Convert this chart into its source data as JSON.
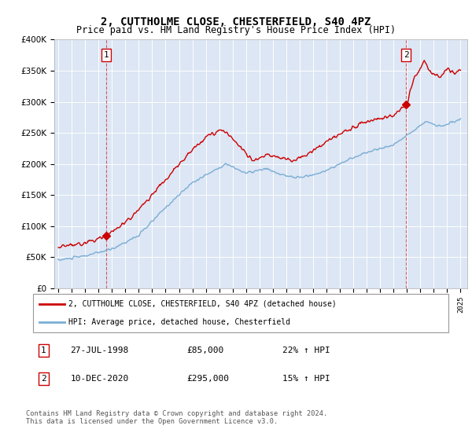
{
  "title": "2, CUTTHOLME CLOSE, CHESTERFIELD, S40 4PZ",
  "subtitle": "Price paid vs. HM Land Registry's House Price Index (HPI)",
  "legend_line1": "2, CUTTHOLME CLOSE, CHESTERFIELD, S40 4PZ (detached house)",
  "legend_line2": "HPI: Average price, detached house, Chesterfield",
  "footnote1": "Contains HM Land Registry data © Crown copyright and database right 2024.",
  "footnote2": "This data is licensed under the Open Government Licence v3.0.",
  "table_rows": [
    {
      "num": "1",
      "date": "27-JUL-1998",
      "price": "£85,000",
      "change": "22% ↑ HPI"
    },
    {
      "num": "2",
      "date": "10-DEC-2020",
      "price": "£295,000",
      "change": "15% ↑ HPI"
    }
  ],
  "sale1_year": 1998.57,
  "sale1_price": 85000,
  "sale2_year": 2020.94,
  "sale2_price": 295000,
  "hpi_color": "#7aadd4",
  "price_color": "#cc0000",
  "plot_bg": "#dce6f4",
  "grid_color": "#c8d4e8",
  "ylim": [
    0,
    400000
  ],
  "xlim_start": 1994.7,
  "xlim_end": 2025.5
}
